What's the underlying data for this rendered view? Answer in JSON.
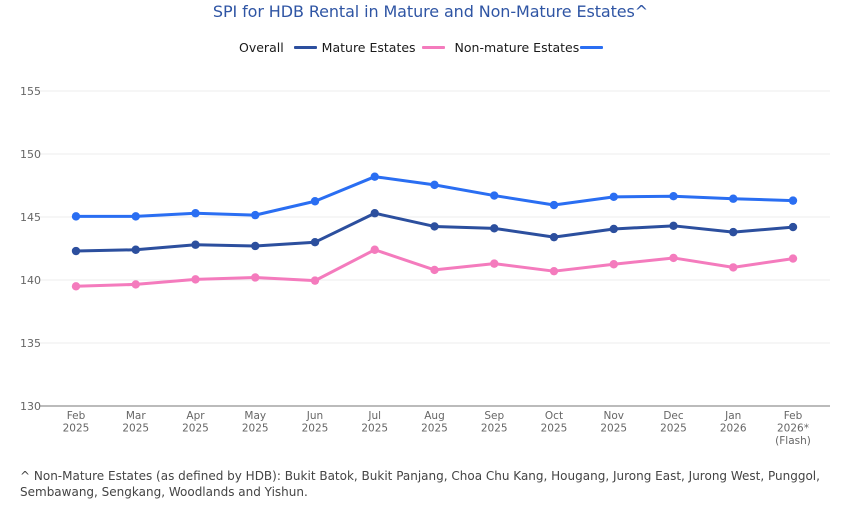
{
  "chart_data": {
    "type": "line",
    "title": "SPI for HDB Rental in Mature and Non-Mature Estates^",
    "xlabel": "",
    "ylabel": "",
    "ylim": [
      130,
      155
    ],
    "yticks": [
      130,
      135,
      140,
      145,
      150,
      155
    ],
    "grid": true,
    "legend_position": "top-center",
    "categories": [
      [
        "Feb",
        "2025"
      ],
      [
        "Mar",
        "2025"
      ],
      [
        "Apr",
        "2025"
      ],
      [
        "May",
        "2025"
      ],
      [
        "Jun",
        "2025"
      ],
      [
        "Jul",
        "2025"
      ],
      [
        "Aug",
        "2025"
      ],
      [
        "Sep",
        "2025"
      ],
      [
        "Oct",
        "2025"
      ],
      [
        "Nov",
        "2025"
      ],
      [
        "Dec",
        "2025"
      ],
      [
        "Jan",
        "2026"
      ],
      [
        "Feb",
        "2026*",
        "(Flash)"
      ]
    ],
    "series": [
      {
        "name": "Overall",
        "color": "#2c4f9e",
        "values": [
          142.3,
          142.4,
          142.8,
          142.7,
          143.0,
          145.3,
          144.25,
          144.1,
          143.4,
          144.05,
          144.3,
          143.8,
          144.2
        ]
      },
      {
        "name": "Mature Estates",
        "color": "#f47bbd",
        "values": [
          139.5,
          139.65,
          140.05,
          140.2,
          139.95,
          142.4,
          140.8,
          141.3,
          140.7,
          141.25,
          141.75,
          141.0,
          141.7
        ]
      },
      {
        "name": "Non-mature Estates",
        "color": "#2a6ef2",
        "values": [
          145.05,
          145.05,
          145.3,
          145.15,
          146.25,
          148.2,
          147.55,
          146.7,
          145.95,
          146.6,
          146.65,
          146.45,
          146.3
        ]
      }
    ]
  },
  "footnote": "^ Non-Mature Estates (as defined by HDB): Bukit Batok, Bukit Panjang, Choa Chu Kang, Hougang, Jurong East, Jurong West, Punggol, Sembawang, Sengkang, Woodlands and Yishun."
}
